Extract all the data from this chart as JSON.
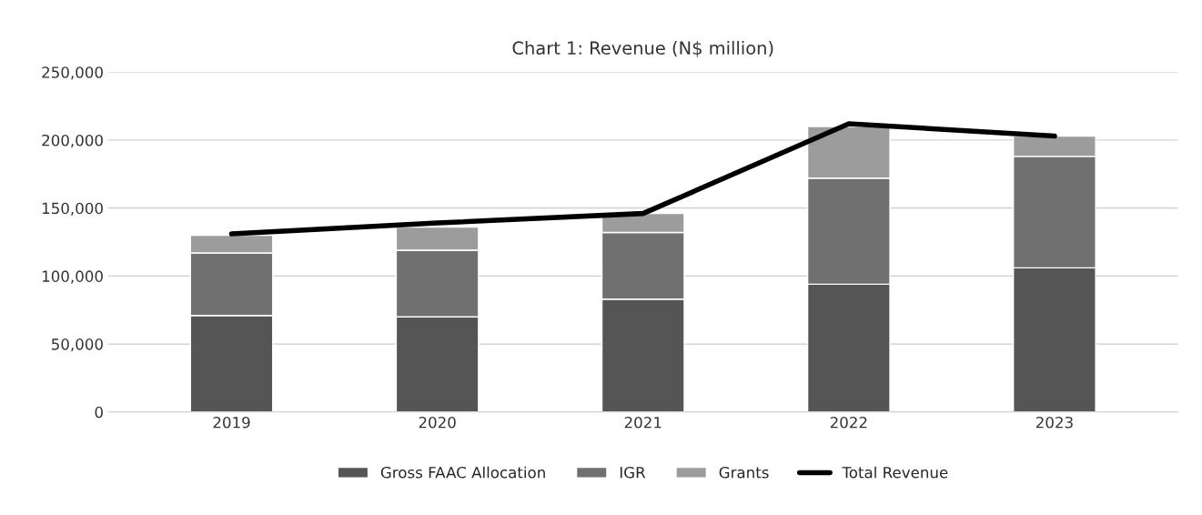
{
  "chart_data": {
    "type": "bar",
    "title": "Chart 1: Revenue (N$ million)",
    "categories": [
      "2019",
      "2020",
      "2021",
      "2022",
      "2023"
    ],
    "stacked": true,
    "series": [
      {
        "name": "Gross FAAC Allocation",
        "color": "#555555",
        "values": [
          71000,
          70000,
          83000,
          94000,
          106000
        ]
      },
      {
        "name": "IGR",
        "color": "#707070",
        "values": [
          46000,
          49000,
          49000,
          78000,
          82000
        ]
      },
      {
        "name": "Grants",
        "color": "#9c9c9c",
        "values": [
          13000,
          17000,
          14000,
          38000,
          15000
        ]
      },
      {
        "name": "Total Revenue",
        "type": "line",
        "color": "#000000",
        "values": [
          131000,
          139000,
          146000,
          212000,
          203000
        ]
      }
    ],
    "ylim": [
      0,
      250000
    ],
    "yticks": [
      {
        "value": 0,
        "label": "0"
      },
      {
        "value": 50000,
        "label": "50,000"
      },
      {
        "value": 100000,
        "label": "100,000"
      },
      {
        "value": 150000,
        "label": "150,000"
      },
      {
        "value": 200000,
        "label": "200,000"
      },
      {
        "value": 250000,
        "label": "250,000"
      }
    ],
    "grid": "y",
    "legend": "bottom"
  }
}
